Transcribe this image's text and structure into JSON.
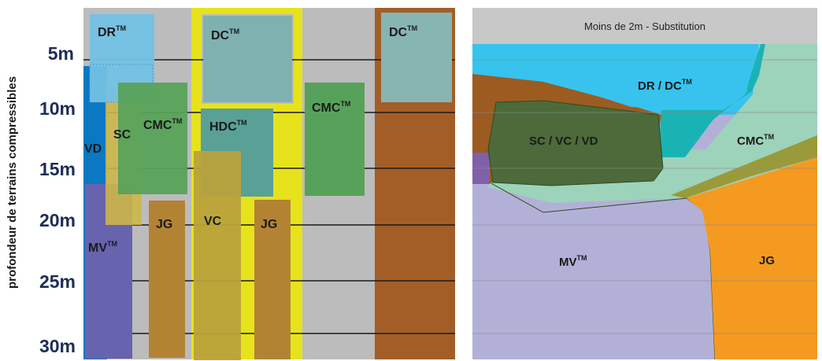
{
  "y_axis": {
    "title": "profondeur de terrains compressibles",
    "ticks": [
      "5m",
      "10m",
      "15m",
      "20m",
      "25m",
      "30m"
    ]
  },
  "left_panel": {
    "labels": {
      "dr": "DR",
      "dc_yellow": "DC",
      "dc_brown": "DC",
      "vd": "VD",
      "sc": "SC",
      "cmc_left": "CMC",
      "cmc_right": "CMC",
      "hdc": "HDC",
      "mv": "MV",
      "jg_left": "JG",
      "vc": "VC",
      "jg_mid": "JG"
    }
  },
  "right_panel": {
    "title": "Moins de 2m - Substitution",
    "labels": {
      "dr_dc": "DR / DC",
      "sc_vc_vd": "SC / VC / VD",
      "cmc": "CMC",
      "mv": "MV",
      "jg": "JG"
    }
  },
  "trademark": "TM",
  "colors": {
    "grey_bg": "#bcbcbc",
    "line": "#1a1a1a",
    "blue_vd": "#0a78c2",
    "dr_blue": "#73c1e4",
    "sc_yellow": "#cdb64a",
    "cmc_green": "#57a25a",
    "mv_purple": "#6763ae",
    "jg_brown": "#b38334",
    "yellow_frame": "#e6e31c",
    "dc_teal": "#7fb1b0",
    "hdc_teal": "#59a096",
    "vc_khaki": "#b9a23c",
    "brown_frame": "#a35e27",
    "dc_right": "#87b5b2",
    "right_cyan": "#37c3ee",
    "right_brown": "#9c5b21",
    "right_teal": "#1ab3b3",
    "right_mint": "#9dd2bb",
    "right_olive": "#9a9a3a",
    "right_dark_green": "#4d6a3a",
    "right_lavender": "#b3b0d8",
    "right_orange": "#f59a20",
    "right_purple": "#8061a8",
    "right_title_bg": "#c8c8c8"
  }
}
